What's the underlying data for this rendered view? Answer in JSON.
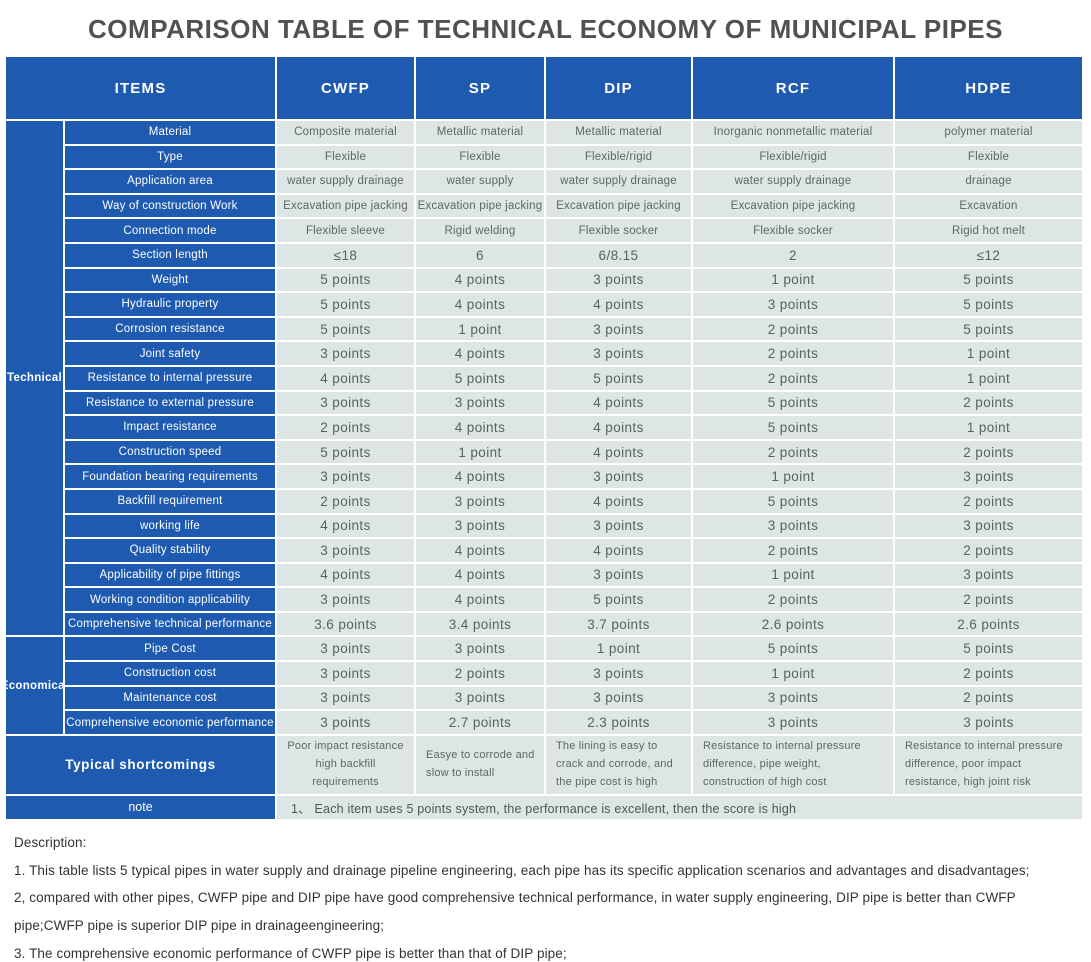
{
  "title": "COMPARISON TABLE OF TECHNICAL ECONOMY OF MUNICIPAL PIPES",
  "table": {
    "items_header": "ITEMS",
    "columns": [
      "CWFP",
      "SP",
      "DIP",
      "RCF",
      "HDPE"
    ],
    "groups": [
      {
        "label": "Technical",
        "rows": [
          {
            "label": "Material",
            "big": false,
            "values": [
              "Composite material",
              "Metallic material",
              "Metallic material",
              "Inorganic nonmetallic material",
              "polymer material"
            ]
          },
          {
            "label": "Type",
            "big": false,
            "values": [
              "Flexible",
              "Flexible",
              "Flexible/rigid",
              "Flexible/rigid",
              "Flexible"
            ]
          },
          {
            "label": "Application area",
            "big": false,
            "values": [
              "water supply drainage",
              "water supply",
              "water supply drainage",
              "water supply drainage",
              "drainage"
            ]
          },
          {
            "label": "Way of construction Work",
            "big": false,
            "values": [
              "Excavation pipe jacking",
              "Excavation pipe jacking",
              "Excavation pipe jacking",
              "Excavation pipe jacking",
              "Excavation"
            ]
          },
          {
            "label": "Connection mode",
            "big": false,
            "values": [
              "Flexible sleeve",
              "Rigid welding",
              "Flexible socker",
              "Flexible socker",
              "Rigid hot melt"
            ]
          },
          {
            "label": "Section length",
            "big": true,
            "values": [
              "≤18",
              "6",
              "6/8.15",
              "2",
              "≤12"
            ]
          },
          {
            "label": "Weight",
            "big": true,
            "values": [
              "5 points",
              "4 points",
              "3 points",
              "1 point",
              "5 points"
            ]
          },
          {
            "label": "Hydraulic property",
            "big": true,
            "values": [
              "5 points",
              "4 points",
              "4 points",
              "3 points",
              "5 points"
            ]
          },
          {
            "label": "Corrosion resistance",
            "big": true,
            "values": [
              "5 points",
              "1 point",
              "3 points",
              "2 points",
              "5 points"
            ]
          },
          {
            "label": "Joint safety",
            "big": true,
            "values": [
              "3 points",
              "4 points",
              "3 points",
              "2 points",
              "1 point"
            ]
          },
          {
            "label": "Resistance to internal pressure",
            "big": true,
            "values": [
              "4 points",
              "5 points",
              "5 points",
              "2 points",
              "1 point"
            ]
          },
          {
            "label": "Resistance to external pressure",
            "big": true,
            "values": [
              "3 points",
              "3 points",
              "4 points",
              "5 points",
              "2 points"
            ]
          },
          {
            "label": "Impact resistance",
            "big": true,
            "values": [
              "2 points",
              "4 points",
              "4 points",
              "5 points",
              "1 point"
            ]
          },
          {
            "label": "Construction speed",
            "big": true,
            "values": [
              "5 points",
              "1 point",
              "4 points",
              "2 points",
              "2 points"
            ]
          },
          {
            "label": "Foundation bearing requirements",
            "big": true,
            "values": [
              "3 points",
              "4 points",
              "3 points",
              "1 point",
              "3 points"
            ]
          },
          {
            "label": "Backfill requirement",
            "big": true,
            "values": [
              "2 points",
              "3 points",
              "4 points",
              "5 points",
              "2 points"
            ]
          },
          {
            "label": "working life",
            "big": true,
            "values": [
              "4 points",
              "3 points",
              "3 points",
              "3 points",
              "3 points"
            ]
          },
          {
            "label": "Quality stability",
            "big": true,
            "values": [
              "3 points",
              "4 points",
              "4 points",
              "2 points",
              "2 points"
            ]
          },
          {
            "label": "Applicability of pipe fittings",
            "big": true,
            "values": [
              "4 points",
              "4 points",
              "3 points",
              "1 point",
              "3 points"
            ]
          },
          {
            "label": "Working condition applicability",
            "big": true,
            "values": [
              "3 points",
              "4 points",
              "5 points",
              "2 points",
              "2 points"
            ]
          },
          {
            "label": "Comprehensive technical performance",
            "big": true,
            "values": [
              "3.6 points",
              "3.4 points",
              "3.7 points",
              "2.6 points",
              "2.6 points"
            ]
          }
        ]
      },
      {
        "label": "Economical",
        "rows": [
          {
            "label": "Pipe Cost",
            "big": true,
            "values": [
              "3 points",
              "3 points",
              "1 point",
              "5 points",
              "5 points"
            ]
          },
          {
            "label": "Construction cost",
            "big": true,
            "values": [
              "3 points",
              "2 points",
              "3 points",
              "1 point",
              "2 points"
            ]
          },
          {
            "label": "Maintenance cost",
            "big": true,
            "values": [
              "3 points",
              "3 points",
              "3 points",
              "3 points",
              "2 points"
            ]
          },
          {
            "label": "Comprehensive economic performance",
            "big": true,
            "values": [
              "3 points",
              "2.7 points",
              "2.3 points",
              "3 points",
              "3 points"
            ]
          }
        ]
      }
    ],
    "shortcomings": {
      "label": "Typical shortcomings",
      "values": [
        "Poor impact resistance high backfill requirements",
        "Easye to corrode and slow to install",
        "The lining is easy to crack and corrode, and the pipe cost is high",
        "Resistance to internal pressure difference, pipe weight, construction of high cost",
        "Resistance to internal pressure difference, poor impact resistance, high joint risk"
      ]
    },
    "note": {
      "label": "note",
      "text": "1、 Each item uses 5 points system, the performance is excellent, then the score is high"
    }
  },
  "description": {
    "heading": "Description:",
    "lines": [
      "1. This table lists 5 typical pipes in water supply and drainage pipeline engineering, each pipe has its specific application scenarios and advantages and disadvantages;",
      "2, compared with other pipes, CWFP pipe and DIP pipe have good comprehensive technical performance, in water supply engineering, DIP pipe is better than CWFP pipe;CWFP pipe is superior DIP pipe in drainageengineering;",
      "3. The comprehensive economic performance of CWFP pipe is better than that of DIP pipe;"
    ]
  },
  "colors": {
    "header_blue": "#1d5ab0",
    "cell_light": "#dde6e4",
    "data_text": "#5e6664",
    "title_text": "#515154"
  }
}
